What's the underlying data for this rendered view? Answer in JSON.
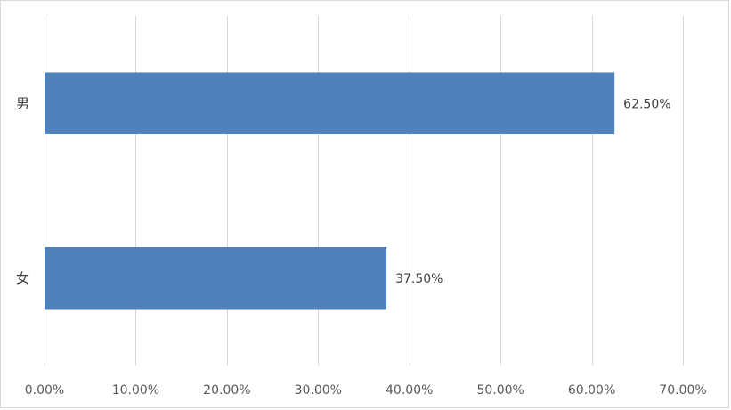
{
  "chart_data": {
    "type": "bar",
    "orientation": "horizontal",
    "categories": [
      "男",
      "女"
    ],
    "values": [
      0.625,
      0.375
    ],
    "data_labels": [
      "62.50%",
      "37.50%"
    ],
    "xlim": [
      0,
      0.7
    ],
    "x_ticks": [
      0,
      0.1,
      0.2,
      0.3,
      0.4,
      0.5,
      0.6,
      0.7
    ],
    "x_tick_labels": [
      "0.00%",
      "10.00%",
      "20.00%",
      "30.00%",
      "40.00%",
      "50.00%",
      "60.00%",
      "70.00%"
    ],
    "grid": "vertical",
    "legend": "none",
    "title": "",
    "xlabel": "",
    "ylabel": "",
    "bar_color": "#4f81bd",
    "grid_color": "#d9d9d9"
  }
}
